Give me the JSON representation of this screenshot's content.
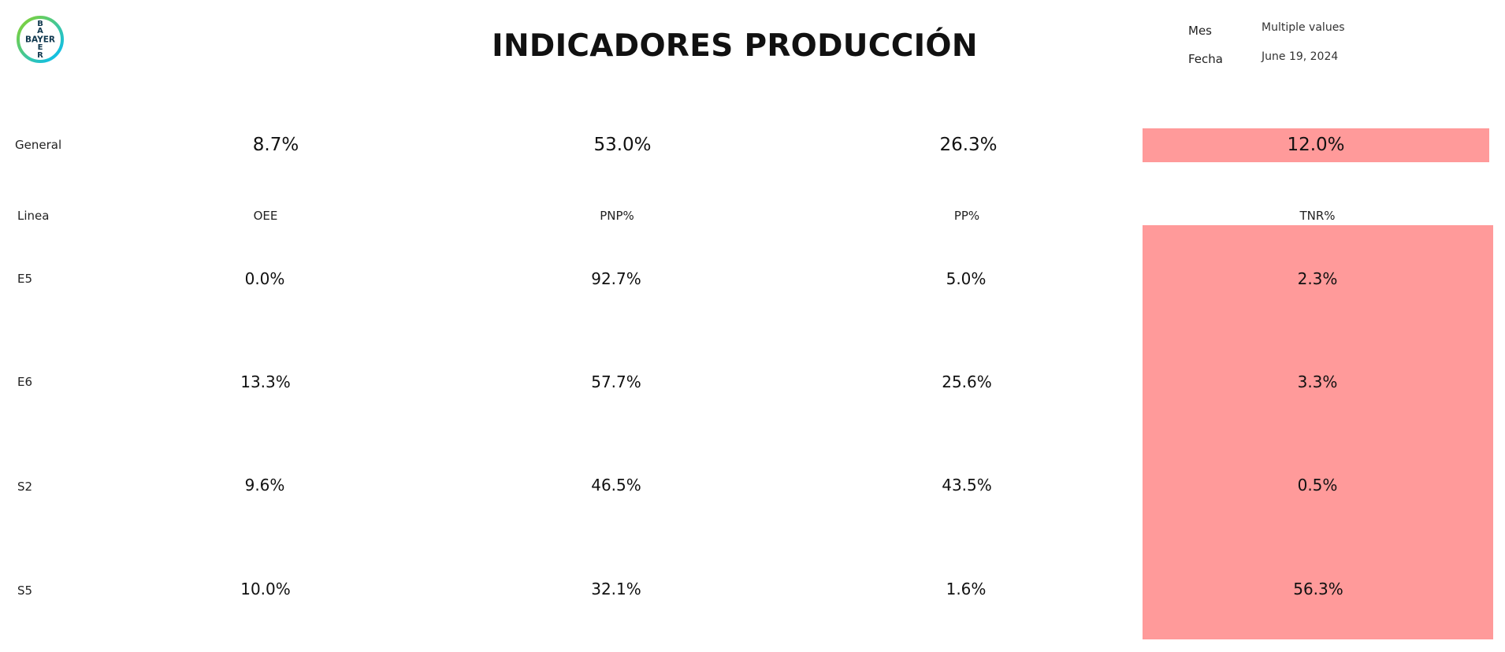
{
  "header": {
    "title": "INDICADORES PRODUCCIÓN",
    "logo_text": "BAYER",
    "logo_colors": [
      "#89d329",
      "#00bcff",
      "#10384f"
    ]
  },
  "filters": {
    "mes_label": "Mes",
    "mes_value": "Multiple values",
    "fecha_label": "Fecha",
    "fecha_value": "June 19, 2024"
  },
  "general": {
    "label": "General",
    "oee": "8.7%",
    "pnp": "53.0%",
    "pp": "26.3%",
    "tnr": "12.0%"
  },
  "table": {
    "headers": {
      "linea": "Linea",
      "oee": "OEE",
      "pnp": "PNP%",
      "pp": "PP%",
      "tnr": "TNR%"
    },
    "rows": [
      {
        "linea": "E5",
        "oee": "0.0%",
        "pnp": "92.7%",
        "pp": "5.0%",
        "tnr": "2.3%"
      },
      {
        "linea": "E6",
        "oee": "13.3%",
        "pnp": "57.7%",
        "pp": "25.6%",
        "tnr": "3.3%"
      },
      {
        "linea": "S2",
        "oee": "9.6%",
        "pnp": "46.5%",
        "pp": "43.5%",
        "tnr": "0.5%"
      },
      {
        "linea": "S5",
        "oee": "10.0%",
        "pnp": "32.1%",
        "pp": "1.6%",
        "tnr": "56.3%"
      }
    ]
  },
  "colors": {
    "tnr_highlight": "#ff9a9a"
  }
}
